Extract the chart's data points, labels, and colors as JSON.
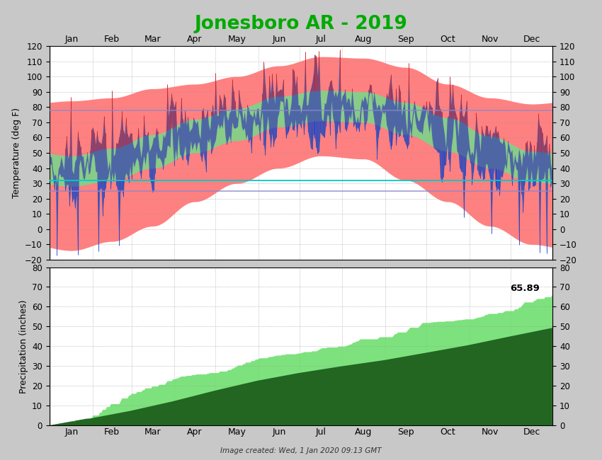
{
  "title": "Jonesboro AR - 2019",
  "title_color": "#00aa00",
  "background_color": "#c8c8c8",
  "plot_bg_color": "#ffffff",
  "temp_ylim": [
    -20,
    120
  ],
  "precip_ylim": [
    0,
    80
  ],
  "months": [
    "Jan",
    "Feb",
    "Mar",
    "Apr",
    "May",
    "Jun",
    "Jul",
    "Aug",
    "Sep",
    "Oct",
    "Nov",
    "Dec"
  ],
  "freeze_line": 32,
  "freeze_color": "#00cccc",
  "avg_high_line": 78,
  "avg_low_line": 25,
  "avg_line_color": "#8888cc",
  "record_high_color": "#ff8888",
  "normal_high_color": "#88cc88",
  "daily_range_color": "#4455bb",
  "daily_high_spike_color": "#cc2222",
  "daily_low_spike_color": "#2244cc",
  "precip_actual_color": "#66dd66",
  "precip_normal_color": "#226622",
  "total_precip": 65.89,
  "normal_high_vals": [
    48,
    53,
    62,
    72,
    79,
    87,
    91,
    90,
    83,
    73,
    61,
    51
  ],
  "normal_low_vals": [
    28,
    32,
    40,
    50,
    58,
    67,
    71,
    70,
    62,
    51,
    40,
    31
  ],
  "record_high_vals": [
    84,
    86,
    92,
    95,
    100,
    107,
    113,
    112,
    106,
    95,
    86,
    82
  ],
  "record_low_vals": [
    -14,
    -8,
    2,
    18,
    30,
    40,
    48,
    46,
    32,
    18,
    2,
    -10
  ],
  "month_starts": [
    0,
    31,
    59,
    90,
    120,
    151,
    181,
    212,
    243,
    273,
    304,
    334
  ],
  "days_in_months": [
    31,
    28,
    31,
    30,
    31,
    30,
    31,
    31,
    30,
    31,
    30,
    31
  ],
  "monthly_precip_normal": [
    4.0,
    3.8,
    5.0,
    5.5,
    5.2,
    4.0,
    3.5,
    3.2,
    3.8,
    4.0,
    4.5,
    4.5
  ],
  "monthly_precip_actual": [
    3.8,
    11.5,
    8.2,
    3.2,
    6.8,
    3.0,
    3.5,
    4.8,
    7.2,
    1.8,
    4.2,
    7.89
  ],
  "footer_text": "Image created: Wed, 1 Jan 2020 09:13 GMT"
}
